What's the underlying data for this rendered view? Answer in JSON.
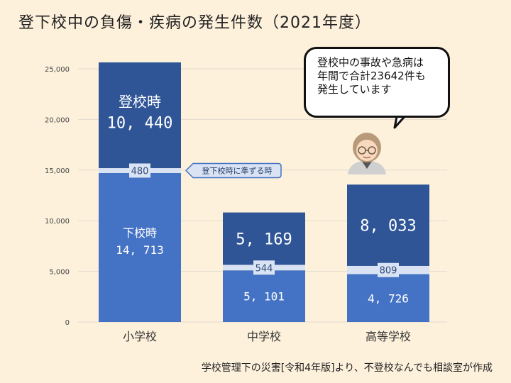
{
  "title": "登下校中の負傷・疾病の発生件数（2021年度）",
  "source": "学校管理下の災害[令和4年版]より、不登校なんでも相談室が作成",
  "callout": {
    "line1": "登校中の事故や急病は",
    "line2": "年間で合計23642件も",
    "line3": "発生しています"
  },
  "annotation": "登下校時に準ずる時",
  "colors": {
    "background": "#fdf1dc",
    "lower": "#4472c4",
    "upper": "#2f5597",
    "middle": "#dae3f3",
    "grid": "#e2dccf"
  },
  "chart_data": {
    "type": "bar",
    "stacked": true,
    "categories": [
      "小学校",
      "中学校",
      "高等学校"
    ],
    "series": [
      {
        "name": "下校時",
        "values": [
          14713,
          5101,
          4726
        ]
      },
      {
        "name": "",
        "values": [
          480,
          544,
          809
        ]
      },
      {
        "name": "登校時",
        "values": [
          10440,
          5169,
          8033
        ]
      }
    ],
    "data_labels": {
      "lower": [
        "14, 713",
        "5, 101",
        "4, 726"
      ],
      "middle": [
        "480",
        "544",
        "809"
      ],
      "upper": [
        "10, 440",
        "5, 169",
        "8, 033"
      ]
    },
    "ylim": [
      0,
      25000
    ],
    "yticks": [
      0,
      5000,
      10000,
      15000,
      20000,
      25000
    ],
    "ytick_labels": [
      "0",
      "5,000",
      "10,000",
      "15,000",
      "20,000",
      "25,000"
    ],
    "grid": true,
    "legend": "none"
  }
}
